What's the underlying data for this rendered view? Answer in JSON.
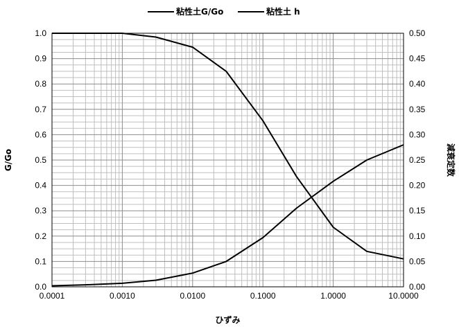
{
  "chart_data": {
    "type": "line",
    "title": "",
    "xlabel": "ひずみ",
    "ylabel": "G/Go",
    "y2label": "減衰定数",
    "xscale": "log",
    "xlim": [
      0.0001,
      10
    ],
    "ylim": [
      0,
      1.0
    ],
    "y2lim": [
      0,
      0.5
    ],
    "grid": true,
    "legend": "top-center",
    "x_ticks": [
      "0.0001",
      "0.0010",
      "0.0100",
      "0.1000",
      "1.0000",
      "10.0000"
    ],
    "y_ticks": [
      "0.0",
      "0.1",
      "0.2",
      "0.3",
      "0.4",
      "0.5",
      "0.6",
      "0.7",
      "0.8",
      "0.9",
      "1.0"
    ],
    "y2_ticks": [
      "0.00",
      "0.05",
      "0.10",
      "0.15",
      "0.20",
      "0.25",
      "0.30",
      "0.35",
      "0.40",
      "0.45",
      "0.50"
    ],
    "series": [
      {
        "name": "粘性土G/Go",
        "axis": "left",
        "color": "#000000",
        "x": [
          0.0001,
          0.0003,
          0.001,
          0.003,
          0.01,
          0.03,
          0.1,
          0.3,
          1,
          3,
          10
        ],
        "y": [
          1.0,
          1.0,
          1.0,
          0.985,
          0.945,
          0.85,
          0.655,
          0.435,
          0.235,
          0.14,
          0.11
        ]
      },
      {
        "name": "粘性土 h",
        "axis": "right",
        "color": "#000000",
        "x": [
          0.0001,
          0.0003,
          0.001,
          0.003,
          0.01,
          0.03,
          0.1,
          0.3,
          1,
          3,
          10
        ],
        "y": [
          0.002,
          0.004,
          0.007,
          0.013,
          0.027,
          0.05,
          0.097,
          0.155,
          0.208,
          0.25,
          0.28
        ]
      }
    ]
  }
}
